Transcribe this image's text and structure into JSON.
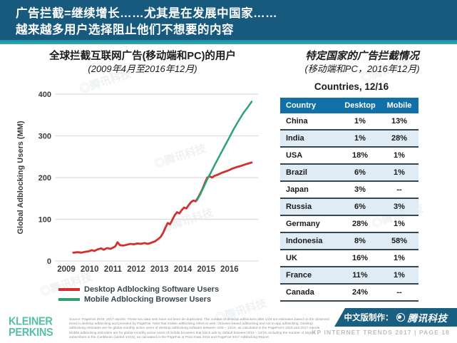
{
  "header": {
    "line1": "广告拦截=继续增长……尤其是在发展中国家……",
    "line2": "越来越多用户选择阻止他们不想要的内容",
    "bg_color": "#175a7d",
    "strip_color": "#2fa8b4"
  },
  "watermark": {
    "text": "◎腾讯科技"
  },
  "left_panel": {
    "title": "全球拦截互联网广告(移动端和PC)的用户",
    "subtitle": "(2009年4月至2016年12月)"
  },
  "chart_data": {
    "type": "line",
    "title": "全球拦截互联网广告(移动端和PC)的用户 (2009年4月至2016年12月)",
    "xlabel": "",
    "ylabel": "Global Adblocking Users (MM)",
    "ylim": [
      0,
      400
    ],
    "yticks": [
      0,
      100,
      200,
      300,
      400
    ],
    "xticks": [
      2009,
      2010,
      2011,
      2012,
      2013,
      2014,
      2015,
      2016
    ],
    "grid": "horizontal",
    "legend_position": "bottom",
    "series": [
      {
        "name": "Desktop Adblocking Software Users",
        "color": "#d32f2f",
        "points": [
          [
            2009.3,
            20
          ],
          [
            2009.5,
            21
          ],
          [
            2009.65,
            20
          ],
          [
            2009.8,
            22
          ],
          [
            2009.95,
            23
          ],
          [
            2010.1,
            26
          ],
          [
            2010.2,
            24
          ],
          [
            2010.35,
            28
          ],
          [
            2010.5,
            30
          ],
          [
            2010.6,
            27
          ],
          [
            2010.75,
            31
          ],
          [
            2010.9,
            29
          ],
          [
            2011.0,
            32
          ],
          [
            2011.1,
            35
          ],
          [
            2011.2,
            45
          ],
          [
            2011.3,
            38
          ],
          [
            2011.45,
            37
          ],
          [
            2011.6,
            39
          ],
          [
            2011.75,
            41
          ],
          [
            2011.9,
            40
          ],
          [
            2012.05,
            42
          ],
          [
            2012.2,
            41
          ],
          [
            2012.35,
            43
          ],
          [
            2012.5,
            41
          ],
          [
            2012.65,
            44
          ],
          [
            2012.8,
            47
          ],
          [
            2012.95,
            53
          ],
          [
            2013.05,
            58
          ],
          [
            2013.15,
            67
          ],
          [
            2013.25,
            80
          ],
          [
            2013.35,
            91
          ],
          [
            2013.45,
            88
          ],
          [
            2013.55,
            99
          ],
          [
            2013.65,
            110
          ],
          [
            2013.75,
            117
          ],
          [
            2013.85,
            114
          ],
          [
            2013.95,
            122
          ],
          [
            2014.05,
            128
          ],
          [
            2014.15,
            126
          ],
          [
            2014.25,
            134
          ],
          [
            2014.35,
            141
          ],
          [
            2014.45,
            145
          ],
          [
            2014.55,
            143
          ],
          [
            2014.65,
            152
          ],
          [
            2014.75,
            162
          ],
          [
            2014.85,
            174
          ],
          [
            2014.95,
            188
          ],
          [
            2015.05,
            200
          ],
          [
            2015.15,
            203
          ],
          [
            2015.25,
            200
          ],
          [
            2015.35,
            204
          ],
          [
            2015.5,
            207
          ],
          [
            2015.65,
            211
          ],
          [
            2015.8,
            214
          ],
          [
            2015.95,
            217
          ],
          [
            2016.1,
            221
          ],
          [
            2016.3,
            225
          ],
          [
            2016.5,
            228
          ],
          [
            2016.7,
            232
          ],
          [
            2016.95,
            236
          ]
        ]
      },
      {
        "name": "Mobile Adblocking Browser Users",
        "color": "#2ba474",
        "points": [
          [
            2014.6,
            145
          ],
          [
            2014.75,
            160
          ],
          [
            2014.9,
            178
          ],
          [
            2015.05,
            196
          ],
          [
            2015.2,
            212
          ],
          [
            2015.4,
            234
          ],
          [
            2015.6,
            255
          ],
          [
            2015.8,
            276
          ],
          [
            2016.0,
            297
          ],
          [
            2016.2,
            318
          ],
          [
            2016.4,
            337
          ],
          [
            2016.6,
            355
          ],
          [
            2016.8,
            370
          ],
          [
            2016.95,
            382
          ]
        ]
      }
    ]
  },
  "right_panel": {
    "title": "特定国家的广告拦截情况",
    "subtitle": "(移动端和PC，2016年12月)",
    "table_title": "Countries, 12/16",
    "table": {
      "headers": [
        "Country",
        "Desktop",
        "Mobile"
      ],
      "header_bg": "#1170a8",
      "alt_row_bg": "#dfebf5",
      "rows": [
        [
          "China",
          "1%",
          "13%"
        ],
        [
          "India",
          "1%",
          "28%"
        ],
        [
          "USA",
          "18%",
          "1%"
        ],
        [
          "Brazil",
          "6%",
          "1%"
        ],
        [
          "Japan",
          "3%",
          "--"
        ],
        [
          "Russia",
          "6%",
          "3%"
        ],
        [
          "Germany",
          "28%",
          "1%"
        ],
        [
          "Indonesia",
          "8%",
          "58%"
        ],
        [
          "UK",
          "16%",
          "1%"
        ],
        [
          "France",
          "11%",
          "1%"
        ],
        [
          "Canada",
          "24%",
          "--"
        ]
      ]
    }
  },
  "footer": {
    "logo_line1": "KLEINER",
    "logo_line2": "PERKINS",
    "logo_color": "#57bfa7",
    "source": "Source: PageFair 2015, 2017 reports. These two data sets have not been de-duplicated. The number of desktop adblockers after 1/16 are estimates based on the observed trend in desktop adblocking and provided by PageFair. Note that mobile adblocking refers to web / browser-based adblocking and not in-app adblocking. Desktop adblocking estimates are for global monthly active users of desktop adblocking software between 4/09 – 12/16, as calculated in the PageFair's 2015 and 2017 reports. Mobile adblocking estimates are for global monthly active users of mobile browsers that block ads by default between 9/14 – 12/16, including the number of Digicel subscribers in the Caribbean (added 10/15), as calculated in the PageFair & Priori Data 2016 and PageFair 2017 Adblocking Report.",
    "credit_label": "中文版制作：",
    "credit_brand": "腾讯科技",
    "page_info": "KP INTERNET TRENDS 2017   |   PAGE 18"
  }
}
